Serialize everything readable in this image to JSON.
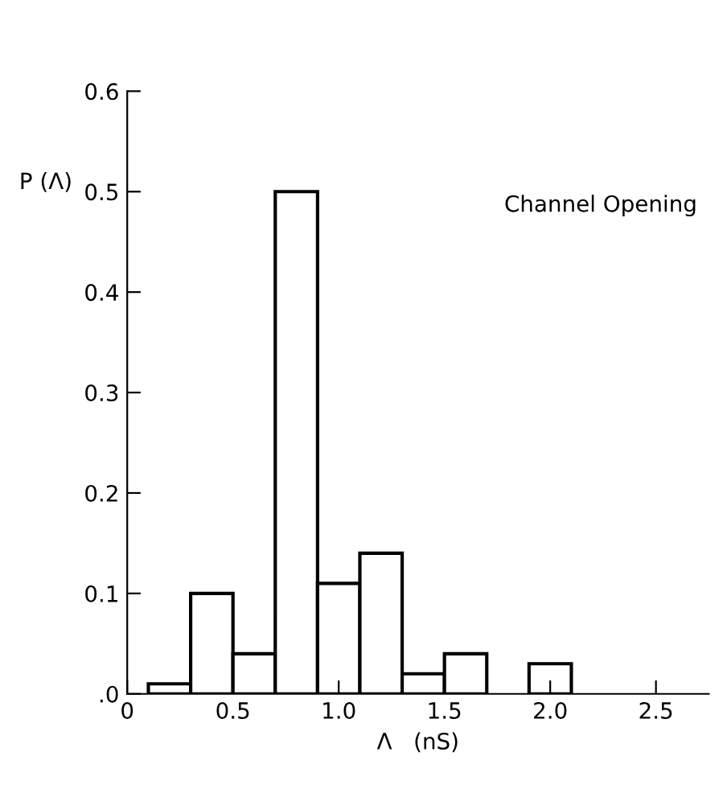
{
  "chart_data": {
    "type": "histogram",
    "xlabel": "Λ   (nS)",
    "ylabel": "P (Λ)",
    "bins": [
      0.1,
      0.3,
      0.5,
      0.7,
      0.9,
      1.1,
      1.3,
      1.5,
      1.7,
      1.9,
      2.1
    ],
    "values": [
      0.01,
      0.1,
      0.04,
      0.5,
      0.11,
      0.14,
      0.02,
      0.04,
      0,
      0.03
    ],
    "color": "#ffffff",
    "xlim": [
      0,
      2.75
    ],
    "xticks": [
      0,
      0.5,
      {
        "value": 1.0,
        "label": "1.0"
      },
      1.5,
      {
        "value": 2.0,
        "label": "2.0"
      },
      2.5
    ],
    "ylim": [
      0,
      0.6
    ],
    "yticks": [
      {
        "value": 0,
        "label": ".0"
      },
      0.1,
      0.2,
      0.3,
      0.4,
      0.5,
      0.6
    ],
    "grid": false,
    "annotations": [
      "Channel Opening"
    ]
  }
}
